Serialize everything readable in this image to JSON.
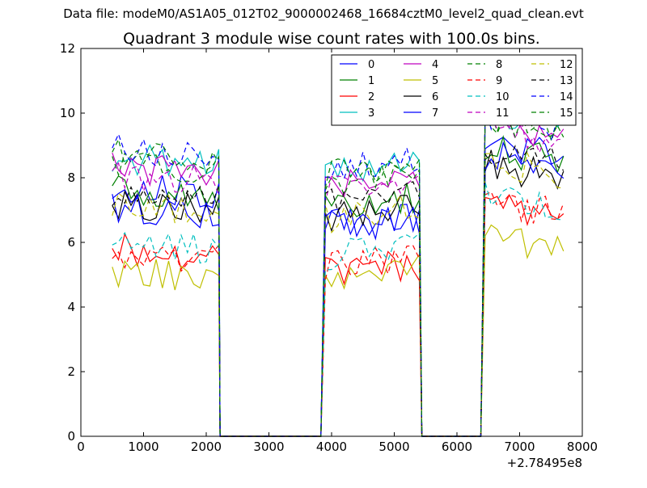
{
  "figure": {
    "suptitle": "Data file: modeM0/AS1A05_012T02_9000002468_16684cztM0_level2_quad_clean.evt"
  },
  "chart_data": {
    "type": "line",
    "title": "Quadrant 3 module wise count rates with 100.0s bins.",
    "xlabel": "",
    "ylabel": "",
    "x_offset_label": "+2.78495e8",
    "xlim": [
      0,
      8000
    ],
    "ylim": [
      0,
      12
    ],
    "x_ticks": [
      0,
      1000,
      2000,
      3000,
      4000,
      5000,
      6000,
      7000,
      8000
    ],
    "x_tick_labels": [
      "0",
      "1000",
      "2000",
      "3000",
      "4000",
      "5000",
      "6000",
      "7000",
      "8000"
    ],
    "y_ticks": [
      0,
      2,
      4,
      6,
      8,
      10,
      12
    ],
    "y_tick_labels": [
      "0",
      "2",
      "4",
      "6",
      "8",
      "10",
      "12"
    ],
    "grid": false,
    "legend_position": "top-right",
    "legend_columns": 4,
    "segments": [
      {
        "start": 500,
        "end": 2200,
        "decay": -0.1
      },
      {
        "start": 3900,
        "end": 5400,
        "decay": 0.12
      },
      {
        "start": 6450,
        "end": 7700,
        "decay": -0.2
      }
    ],
    "gaps": [
      [
        2220,
        3830
      ],
      [
        5440,
        6350
      ]
    ],
    "series": [
      {
        "name": "0",
        "color": "#0000ff",
        "dash": "solid",
        "levels": [
          7.6,
          6.7,
          8.9
        ]
      },
      {
        "name": "1",
        "color": "#008000",
        "dash": "solid",
        "levels": [
          7.5,
          7.3,
          8.7
        ]
      },
      {
        "name": "2",
        "color": "#ff0000",
        "dash": "solid",
        "levels": [
          5.7,
          5.2,
          7.0
        ]
      },
      {
        "name": "3",
        "color": "#00bfbf",
        "dash": "solid",
        "levels": [
          8.5,
          8.3,
          9.9
        ]
      },
      {
        "name": "4",
        "color": "#bf00bf",
        "dash": "solid",
        "levels": [
          8.2,
          7.9,
          9.5
        ]
      },
      {
        "name": "5",
        "color": "#bfbf00",
        "dash": "solid",
        "levels": [
          5.0,
          5.1,
          6.0
        ]
      },
      {
        "name": "6",
        "color": "#000000",
        "dash": "solid",
        "levels": [
          7.1,
          6.9,
          8.2
        ]
      },
      {
        "name": "7",
        "color": "#0000ff",
        "dash": "solid",
        "levels": [
          7.0,
          6.6,
          8.5
        ]
      },
      {
        "name": "8",
        "color": "#008000",
        "dash": "dashed",
        "levels": [
          8.4,
          8.0,
          9.6
        ]
      },
      {
        "name": "9",
        "color": "#ff0000",
        "dash": "dashed",
        "levels": [
          5.6,
          5.4,
          7.1
        ]
      },
      {
        "name": "10",
        "color": "#00bfbf",
        "dash": "dashed",
        "levels": [
          5.9,
          5.7,
          7.3
        ]
      },
      {
        "name": "11",
        "color": "#bf00bf",
        "dash": "dashed",
        "levels": [
          8.0,
          7.7,
          9.3
        ]
      },
      {
        "name": "12",
        "color": "#bfbf00",
        "dash": "dashed",
        "levels": [
          7.0,
          6.9,
          8.3
        ]
      },
      {
        "name": "13",
        "color": "#000000",
        "dash": "dashed",
        "levels": [
          7.4,
          7.3,
          8.6
        ]
      },
      {
        "name": "14",
        "color": "#0000ff",
        "dash": "dashed",
        "levels": [
          8.8,
          8.5,
          9.8
        ]
      },
      {
        "name": "15",
        "color": "#008000",
        "dash": "dashed",
        "levels": [
          8.7,
          8.2,
          9.7
        ]
      }
    ]
  }
}
